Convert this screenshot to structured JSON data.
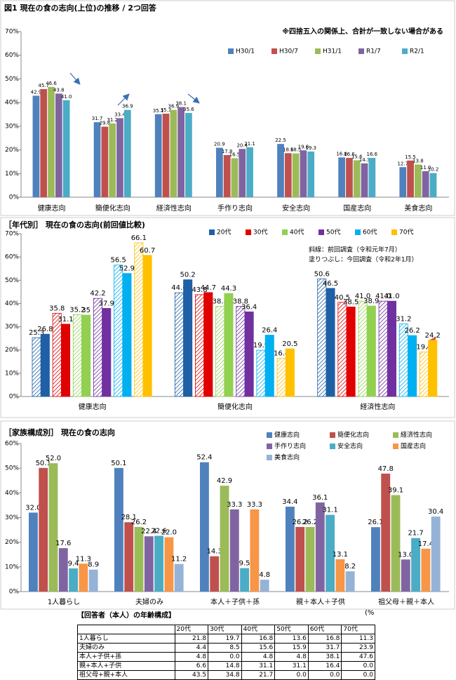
{
  "chart_data": [
    {
      "type": "bar",
      "title": "図1 現在の食の志向(上位)の推移 / 2つ回答",
      "note": "※四捨五入の関係上、合計が一致しない場合がある",
      "categories": [
        "健康志向",
        "簡便化志向",
        "経済性志向",
        "手作り志向",
        "安全志向",
        "国産志向",
        "美食志向"
      ],
      "ylim": [
        0,
        70
      ],
      "yticks": [
        {
          "value": 0,
          "label": "0%"
        },
        {
          "value": 10,
          "label": "10%"
        },
        {
          "value": 20,
          "label": "20%"
        },
        {
          "value": 30,
          "label": "30%"
        },
        {
          "value": 40,
          "label": "40%"
        },
        {
          "value": 50,
          "label": "50%"
        },
        {
          "value": 60,
          "label": "60%"
        },
        {
          "value": 70,
          "label": "70%"
        }
      ],
      "series": [
        {
          "name": "H30/1",
          "color": "#4f81bd",
          "values": [
            42.9,
            31.7,
            35.1,
            20.9,
            22.5,
            16.8,
            12.7
          ],
          "value_labels": [
            "42.9",
            "31.7",
            "35.1",
            "20.9",
            "22.5",
            "16.8",
            "12.7"
          ]
        },
        {
          "name": "H30/7",
          "color": "#c0504d",
          "values": [
            45.7,
            29.8,
            35.3,
            17.8,
            18.6,
            16.6,
            15.5
          ],
          "value_labels": [
            "45.7",
            "29.8",
            "35.3",
            "17.8",
            "18.6",
            "16.6",
            "15.5"
          ]
        },
        {
          "name": "H31/1",
          "color": "#9bbb59",
          "values": [
            46.6,
            31.2,
            36.9,
            16.5,
            18.5,
            15.6,
            13.8
          ],
          "value_labels": [
            "46.6",
            "31.2",
            "36.9",
            "16.5",
            "18.5",
            "15.6",
            "13.8"
          ]
        },
        {
          "name": "R1/7",
          "color": "#8064a2",
          "values": [
            43.8,
            33.4,
            38.1,
            20.4,
            19.8,
            14.3,
            11.0
          ],
          "value_labels": [
            "43.8",
            "33.4",
            "38.1",
            "20.4",
            "19.8",
            "14.3",
            "11.0"
          ]
        },
        {
          "name": "R2/1",
          "color": "#4bacc6",
          "values": [
            41.0,
            36.9,
            35.6,
            21.1,
            19.3,
            16.6,
            10.2
          ],
          "value_labels": [
            "41.0",
            "36.9",
            "35.6",
            "21.1",
            "19.3",
            "16.6",
            "10.2"
          ]
        }
      ]
    },
    {
      "type": "bar",
      "title": "［年代別］ 現在の食の志向(前回値比較)",
      "notes": [
        "斜線：前回調査（令和元年7月）",
        "塗りつぶし：今回調査（令和2年1月）"
      ],
      "categories": [
        "健康志向",
        "簡便化志向",
        "経済性志向"
      ],
      "ylim": [
        0,
        70
      ],
      "yticks": [
        {
          "value": 0,
          "label": "0%"
        },
        {
          "value": 10,
          "label": "10%"
        },
        {
          "value": 20,
          "label": "20%"
        },
        {
          "value": 30,
          "label": "30%"
        },
        {
          "value": 40,
          "label": "40%"
        },
        {
          "value": 50,
          "label": "50%"
        },
        {
          "value": 60,
          "label": "60%"
        },
        {
          "value": 70,
          "label": "70%"
        }
      ],
      "series": [
        {
          "name": "20代",
          "color": "#1f5fa6",
          "previous_values": [
            25.3,
            44.6,
            50.6
          ],
          "values": [
            26.8,
            50.2,
            46.5
          ],
          "previous_value_labels": [
            "25.3",
            "44.6",
            "50.6"
          ],
          "value_labels": [
            "26.8",
            "50.2",
            "46.5"
          ]
        },
        {
          "name": "30代",
          "color": "#e00000",
          "previous_values": [
            35.8,
            43.8,
            40.5
          ],
          "values": [
            31.1,
            44.7,
            38.5
          ],
          "previous_value_labels": [
            "35.8",
            "43.8",
            "40.5"
          ],
          "value_labels": [
            "31.1",
            "44.7",
            "38.5"
          ]
        },
        {
          "name": "40代",
          "color": "#92d050",
          "previous_values": [
            35.2,
            38.8,
            41.0
          ],
          "values": [
            35,
            44.3,
            38.9
          ],
          "previous_value_labels": [
            "35.2",
            "38.8",
            "41.0"
          ],
          "value_labels": [
            "35",
            "44.3",
            "38.9"
          ]
        },
        {
          "name": "50代",
          "color": "#7030a0",
          "previous_values": [
            42.2,
            38.8,
            41.0
          ],
          "values": [
            37.9,
            36.4,
            41.0
          ],
          "previous_value_labels": [
            "42.2",
            "38.8",
            "41.0"
          ],
          "value_labels": [
            "37.9",
            "36.4",
            "41.0"
          ]
        },
        {
          "name": "60代",
          "color": "#00b0f0",
          "previous_values": [
            56.5,
            19.9,
            31.2
          ],
          "values": [
            52.9,
            26.4,
            26.2
          ],
          "previous_value_labels": [
            "56.5",
            "19.9",
            "31.2"
          ],
          "value_labels": [
            "52.9",
            "26.4",
            "26.2"
          ]
        },
        {
          "name": "70代",
          "color": "#ffc000",
          "previous_values": [
            66.1,
            16.4,
            19.1
          ],
          "values": [
            60.7,
            20.5,
            24.2
          ],
          "previous_value_labels": [
            "66.1",
            "16.4",
            "19.1"
          ],
          "value_labels": [
            "60.7",
            "20.5",
            "24.2"
          ]
        }
      ]
    },
    {
      "type": "bar",
      "title": "［家族構成別］ 現在の食の志向",
      "categories": [
        "1人暮らし",
        "夫婦のみ",
        "本人＋子供＋孫",
        "親＋本人＋子供",
        "祖父母＋親＋本人"
      ],
      "ylim": [
        0,
        60
      ],
      "yticks": [
        {
          "value": 0,
          "label": "0%"
        },
        {
          "value": 10,
          "label": "10%"
        },
        {
          "value": 20,
          "label": "20%"
        },
        {
          "value": 30,
          "label": "30%"
        },
        {
          "value": 40,
          "label": "40%"
        },
        {
          "value": 50,
          "label": "50%"
        },
        {
          "value": 60,
          "label": "60%"
        }
      ],
      "highlight_color": "#ff0000",
      "highlights": [
        [
          0,
          2
        ],
        [
          4,
          3
        ],
        [
          1,
          4
        ],
        [
          6,
          4
        ]
      ],
      "series": [
        {
          "name": "健康志向",
          "color": "#4f81bd",
          "values": [
            32.0,
            50.1,
            52.4,
            34.4,
            26.1
          ],
          "value_labels": [
            "32.0",
            "50.1",
            "52.4",
            "34.4",
            "26.1"
          ]
        },
        {
          "name": "簡便化志向",
          "color": "#c0504d",
          "values": [
            50.1,
            28.1,
            14.3,
            26.2,
            47.8
          ],
          "value_labels": [
            "50.1",
            "28.1",
            "14.3",
            "26.2",
            "47.8"
          ]
        },
        {
          "name": "経済性志向",
          "color": "#9bbb59",
          "values": [
            52.0,
            26.2,
            42.9,
            26.2,
            39.1
          ],
          "value_labels": [
            "52.0",
            "26.2",
            "42.9",
            "26.2",
            "39.1"
          ]
        },
        {
          "name": "手作り志向",
          "color": "#8064a2",
          "values": [
            17.6,
            22.4,
            33.3,
            36.1,
            13.0
          ],
          "value_labels": [
            "17.6",
            "22.4",
            "33.3",
            "36.1",
            "13.0"
          ]
        },
        {
          "name": "安全志向",
          "color": "#4bacc6",
          "values": [
            9.4,
            22.6,
            9.5,
            31.1,
            21.7
          ],
          "value_labels": [
            "9.4",
            "22.6",
            "9.5",
            "31.1",
            "21.7"
          ]
        },
        {
          "name": "国産志向",
          "color": "#f79646",
          "values": [
            11.3,
            22.0,
            33.3,
            13.1,
            17.4
          ],
          "value_labels": [
            "11.3",
            "22.0",
            "33.3",
            "13.1",
            "17.4"
          ]
        },
        {
          "name": "美食志向",
          "color": "#95b3d7",
          "values": [
            8.9,
            11.2,
            4.8,
            8.2,
            30.4
          ],
          "value_labels": [
            "8.9",
            "11.2",
            "4.8",
            "8.2",
            "30.4"
          ]
        }
      ]
    }
  ],
  "table": {
    "title": "【回答者（本人）の年齢構成】",
    "unit": "(%",
    "columns": [
      "20代",
      "30代",
      "40代",
      "50代",
      "60代",
      "70代"
    ],
    "rows": [
      {
        "label": "1人暮らし",
        "values": [
          "21.8",
          "19.7",
          "16.8",
          "13.6",
          "16.8",
          "11.3"
        ]
      },
      {
        "label": "夫婦のみ",
        "values": [
          "4.4",
          "8.5",
          "15.6",
          "15.9",
          "31.7",
          "23.9"
        ]
      },
      {
        "label": "本人+子供+孫",
        "values": [
          "4.8",
          "0.0",
          "4.8",
          "4.8",
          "38.1",
          "47.6"
        ]
      },
      {
        "label": "親+本人+子供",
        "values": [
          "6.6",
          "14.8",
          "31.1",
          "31.1",
          "16.4",
          "0.0"
        ]
      },
      {
        "label": "祖父母+親+本人",
        "values": [
          "43.5",
          "34.8",
          "21.7",
          "0.0",
          "0.0",
          "0.0"
        ]
      }
    ]
  }
}
